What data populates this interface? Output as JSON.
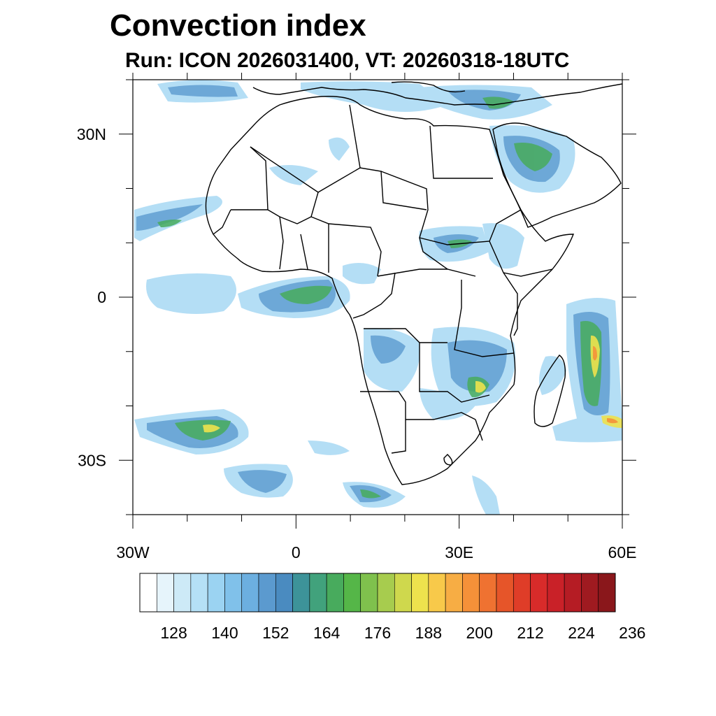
{
  "title": "Convection index",
  "subtitle": "Run: ICON 2026031400,  VT: 20260318-18UTC",
  "map": {
    "projection": "cylindrical equidistant",
    "lon_range": [
      -30,
      60
    ],
    "lat_range": [
      -40,
      40
    ],
    "lat_ticks": [
      {
        "value": 30,
        "label": "30N"
      },
      {
        "value": 0,
        "label": "0"
      },
      {
        "value": -30,
        "label": "30S"
      }
    ],
    "lon_ticks": [
      {
        "value": -30,
        "label": "30W"
      },
      {
        "value": 0,
        "label": "0"
      },
      {
        "value": 30,
        "label": "30E"
      },
      {
        "value": 60,
        "label": "60E"
      }
    ],
    "field": "Convection index"
  },
  "colorbar": {
    "labels": [
      "128",
      "140",
      "152",
      "164",
      "176",
      "188",
      "200",
      "212",
      "224",
      "236"
    ],
    "colors": [
      "#ffffff",
      "#e6f4fb",
      "#cdeaf7",
      "#b5e0f6",
      "#9bd3f2",
      "#80c1ea",
      "#6cafe0",
      "#5b9acf",
      "#4a8bc0",
      "#3d9399",
      "#41a27c",
      "#48ab5d",
      "#55b648",
      "#7fc14d",
      "#a7cc4e",
      "#cfd84d",
      "#eee24d",
      "#f8c94a",
      "#f7ad44",
      "#f59139",
      "#ef7231",
      "#e65529",
      "#df3d28",
      "#d82b2a",
      "#c92128",
      "#b51c24",
      "#9f1a20",
      "#8a171b"
    ]
  }
}
